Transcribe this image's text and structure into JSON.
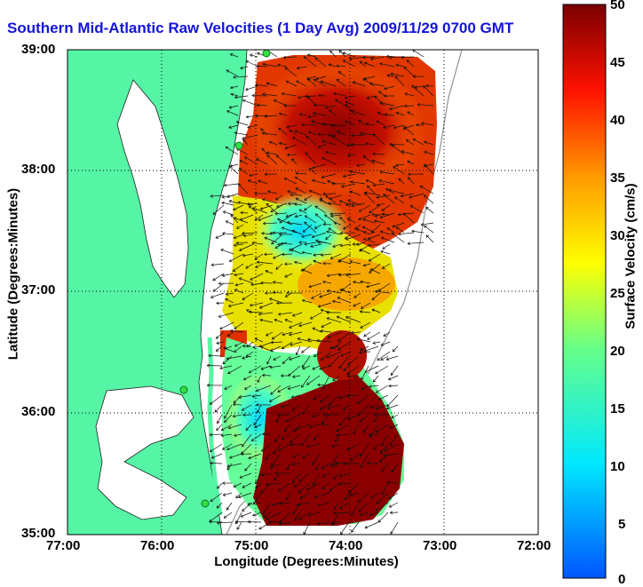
{
  "title": "Southern Mid-Atlantic Raw Velocities (1 Day Avg) 2009/11/29 0700 GMT",
  "axes": {
    "xlabel": "Longitude (Degrees:Minutes)",
    "ylabel": "Latitude (Degrees:Minutes)",
    "xticks": [
      "77:00",
      "76:00",
      "75:00",
      "74:00",
      "73:00",
      "72:00"
    ],
    "yticks": [
      "39:00",
      "38:00",
      "37:00",
      "36:00",
      "35:00"
    ],
    "xlim": [
      -77,
      -72
    ],
    "ylim": [
      35,
      39
    ]
  },
  "colorbar": {
    "label": "Surface Velocity (cm/s)",
    "ticks": [
      "50",
      "45",
      "40",
      "35",
      "30",
      "25",
      "20",
      "15",
      "10",
      "5",
      "0"
    ],
    "range": [
      0,
      50
    ]
  },
  "colors": {
    "land": "#55f5a5",
    "title": "#1414d8",
    "station_marker": "#33dd44"
  }
}
